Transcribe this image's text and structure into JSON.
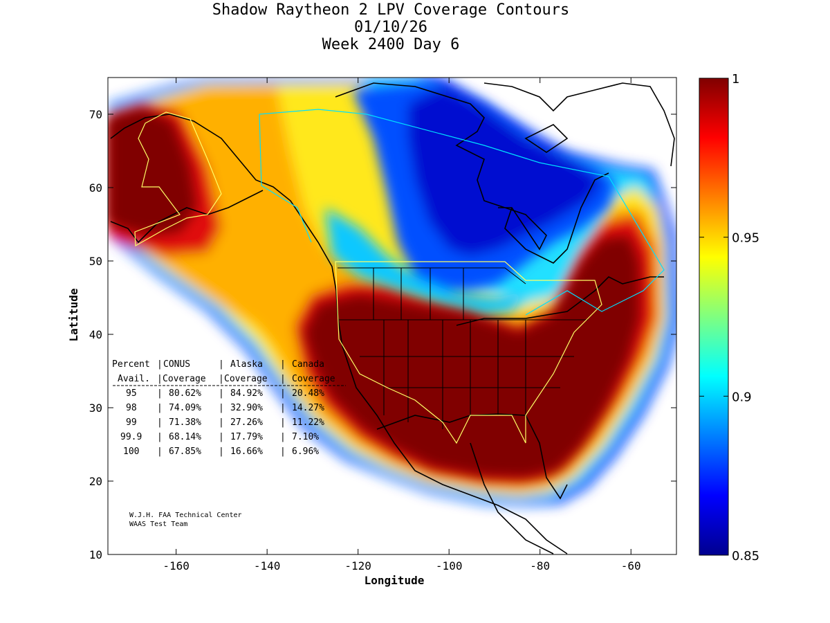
{
  "title_lines": [
    "Shadow Raytheon 2 LPV Coverage Contours",
    "01/10/26",
    "Week 2400 Day 6"
  ],
  "axes": {
    "xlabel": "Longitude",
    "ylabel": "Latitude",
    "x_ticks": [
      {
        "value": -160,
        "label": "-160"
      },
      {
        "value": -140,
        "label": "-140"
      },
      {
        "value": -120,
        "label": "-120"
      },
      {
        "value": -100,
        "label": "-100"
      },
      {
        "value": -80,
        "label": "-80"
      },
      {
        "value": -60,
        "label": "-60"
      }
    ],
    "y_ticks": [
      {
        "value": 10,
        "label": "10"
      },
      {
        "value": 20,
        "label": "20"
      },
      {
        "value": 30,
        "label": "30"
      },
      {
        "value": 40,
        "label": "40"
      },
      {
        "value": 50,
        "label": "50"
      },
      {
        "value": 60,
        "label": "60"
      },
      {
        "value": 70,
        "label": "70"
      }
    ],
    "xlim": [
      -175,
      -50
    ],
    "ylim": [
      10,
      75
    ]
  },
  "colorbar": {
    "range": [
      0.85,
      1
    ],
    "ticks": [
      {
        "value": 1,
        "label": "1"
      },
      {
        "value": 0.95,
        "label": "0.95"
      },
      {
        "value": 0.9,
        "label": "0.9"
      },
      {
        "value": 0.85,
        "label": "0.85"
      }
    ],
    "colormap": "jet",
    "colors": [
      "#00008f",
      "#0000ff",
      "#0080ff",
      "#00ffff",
      "#80ff80",
      "#ffff00",
      "#ff8000",
      "#ff0000",
      "#800000"
    ]
  },
  "table": {
    "header1": [
      "Percent",
      "CONUS",
      "Alaska",
      "Canada"
    ],
    "header2": [
      "Avail.",
      "Coverage",
      "Coverage",
      "Coverage"
    ],
    "rows": [
      {
        "percent": "95",
        "conus": "80.62%",
        "alaska": "84.92%",
        "canada": "20.48%"
      },
      {
        "percent": "98",
        "conus": "74.09%",
        "alaska": "32.90%",
        "canada": "14.27%"
      },
      {
        "percent": "99",
        "conus": "71.38%",
        "alaska": "27.26%",
        "canada": "11.22%"
      },
      {
        "percent": "99.9",
        "conus": "68.14%",
        "alaska": "17.79%",
        "canada": "7.10%"
      },
      {
        "percent": "100",
        "conus": "67.85%",
        "alaska": "16.66%",
        "canada": "6.96%"
      }
    ]
  },
  "credits": [
    "W.J.H. FAA Technical Center",
    "WAAS Test Team"
  ]
}
